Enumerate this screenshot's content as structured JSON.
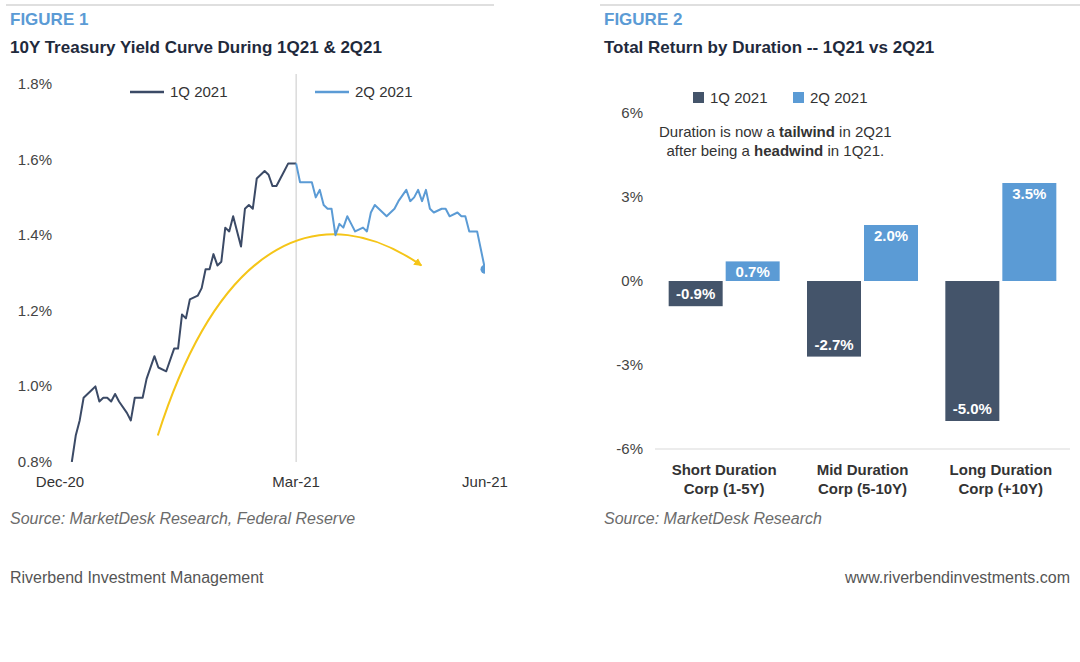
{
  "chart_data": [
    {
      "type": "line",
      "label": "FIGURE 1",
      "title": "10Y Treasury Yield Curve During 1Q21 & 2Q21",
      "source": "Source: MarketDesk Research, Federal Reserve",
      "legend": "top",
      "grid": false,
      "xlim": [
        0,
        108
      ],
      "xticks": [
        {
          "value": 0,
          "label": "Dec-20"
        },
        {
          "value": 60,
          "label": "Mar-21"
        },
        {
          "value": 108,
          "label": "Jun-21"
        }
      ],
      "ylim": [
        0.8,
        1.8
      ],
      "yticks": [
        {
          "value": 0.8,
          "label": "0.8%"
        },
        {
          "value": 1.0,
          "label": "1.0%"
        },
        {
          "value": 1.2,
          "label": "1.2%"
        },
        {
          "value": 1.4,
          "label": "1.4%"
        },
        {
          "value": 1.6,
          "label": "1.6%"
        },
        {
          "value": 1.8,
          "label": "1.8%"
        }
      ],
      "x": [
        3,
        4,
        5,
        6,
        7,
        8,
        9,
        10,
        11,
        12,
        13,
        14,
        15,
        17,
        18,
        19,
        21,
        22,
        24,
        25,
        27,
        29,
        30,
        31,
        32,
        33,
        35,
        36,
        37,
        38,
        39,
        40,
        41,
        42,
        43,
        44,
        46,
        47,
        48,
        49,
        50,
        52,
        53,
        54,
        55,
        56,
        57,
        58,
        60,
        61,
        62,
        64,
        65,
        66,
        67,
        68,
        69,
        70,
        71,
        72,
        73,
        74,
        75,
        77,
        78,
        79,
        80,
        82,
        83,
        85,
        86,
        88,
        89,
        90,
        91,
        92,
        93,
        94,
        95,
        97,
        98,
        99,
        101,
        102,
        103,
        104,
        106,
        107,
        108
      ],
      "series": [
        {
          "name": "1Q 2021",
          "color": "#3b4a66",
          "values": [
            0.8,
            0.87,
            0.91,
            0.97,
            0.98,
            0.99,
            1.0,
            0.96,
            0.97,
            0.97,
            0.96,
            0.98,
            0.96,
            0.93,
            0.91,
            0.97,
            0.97,
            1.02,
            1.08,
            1.05,
            1.04,
            1.1,
            1.1,
            1.19,
            1.18,
            1.23,
            1.24,
            1.26,
            1.31,
            1.31,
            1.35,
            1.32,
            1.33,
            1.42,
            1.41,
            1.45,
            1.37,
            1.47,
            1.48,
            1.47,
            1.55,
            1.57,
            1.56,
            1.53,
            1.53,
            1.55,
            1.57,
            1.59,
            1.59,
            null,
            null,
            null,
            null,
            null,
            null,
            null,
            null,
            null,
            null,
            null,
            null,
            null,
            null,
            null,
            null,
            null,
            null,
            null,
            null,
            null,
            null,
            null,
            null,
            null,
            null,
            null,
            null,
            null,
            null,
            null,
            null,
            null,
            null,
            null,
            null,
            null,
            null,
            null,
            null
          ]
        },
        {
          "name": "2Q 2021",
          "color": "#5b9bd5",
          "marker": "end",
          "values": [
            null,
            null,
            null,
            null,
            null,
            null,
            null,
            null,
            null,
            null,
            null,
            null,
            null,
            null,
            null,
            null,
            null,
            null,
            null,
            null,
            null,
            null,
            null,
            null,
            null,
            null,
            null,
            null,
            null,
            null,
            null,
            null,
            null,
            null,
            null,
            null,
            null,
            null,
            null,
            null,
            null,
            null,
            null,
            null,
            null,
            null,
            null,
            null,
            1.59,
            1.54,
            1.54,
            1.54,
            1.5,
            1.52,
            1.48,
            1.47,
            1.47,
            1.4,
            1.43,
            1.42,
            1.45,
            1.43,
            1.41,
            1.42,
            1.41,
            1.46,
            1.48,
            1.46,
            1.45,
            1.47,
            1.49,
            1.52,
            1.49,
            1.5,
            1.52,
            1.49,
            1.52,
            1.47,
            1.46,
            1.47,
            1.47,
            1.45,
            1.46,
            1.45,
            1.45,
            1.41,
            1.41,
            1.36,
            1.31
          ]
        }
      ]
    },
    {
      "type": "bar",
      "label": "FIGURE 2",
      "title": "Total Return by Duration -- 1Q21 vs 2Q21",
      "source": "Source: MarketDesk Research",
      "annotation": [
        "Duration is now a tailwind in 2Q21",
        "after being a headwind in 1Q21."
      ],
      "legend": "top",
      "grid": false,
      "data_labels": true,
      "categories": [
        "Short Duration\nCorp (1-5Y)",
        "Mid Duration\nCorp (5-10Y)",
        "Long Duration\nCorp (+10Y)"
      ],
      "ylim": [
        -6,
        6
      ],
      "yticks": [
        {
          "value": -6,
          "label": "-6%"
        },
        {
          "value": -3,
          "label": "-3%"
        },
        {
          "value": 0,
          "label": "0%"
        },
        {
          "value": 3,
          "label": "3%"
        },
        {
          "value": 6,
          "label": "6%"
        }
      ],
      "series": [
        {
          "name": "1Q 2021",
          "color": "#44546a",
          "values": [
            -0.9,
            -2.7,
            -5.0
          ],
          "value_labels": [
            "-0.9%",
            "-2.7%",
            "-5.0%"
          ]
        },
        {
          "name": "2Q 2021",
          "color": "#5b9bd5",
          "values": [
            0.7,
            2.0,
            3.5
          ],
          "value_labels": [
            "0.7%",
            "2.0%",
            "3.5%"
          ]
        }
      ]
    }
  ],
  "footer": {
    "left": "Riverbend Investment Management",
    "right": "www.riverbendinvestments.com"
  }
}
